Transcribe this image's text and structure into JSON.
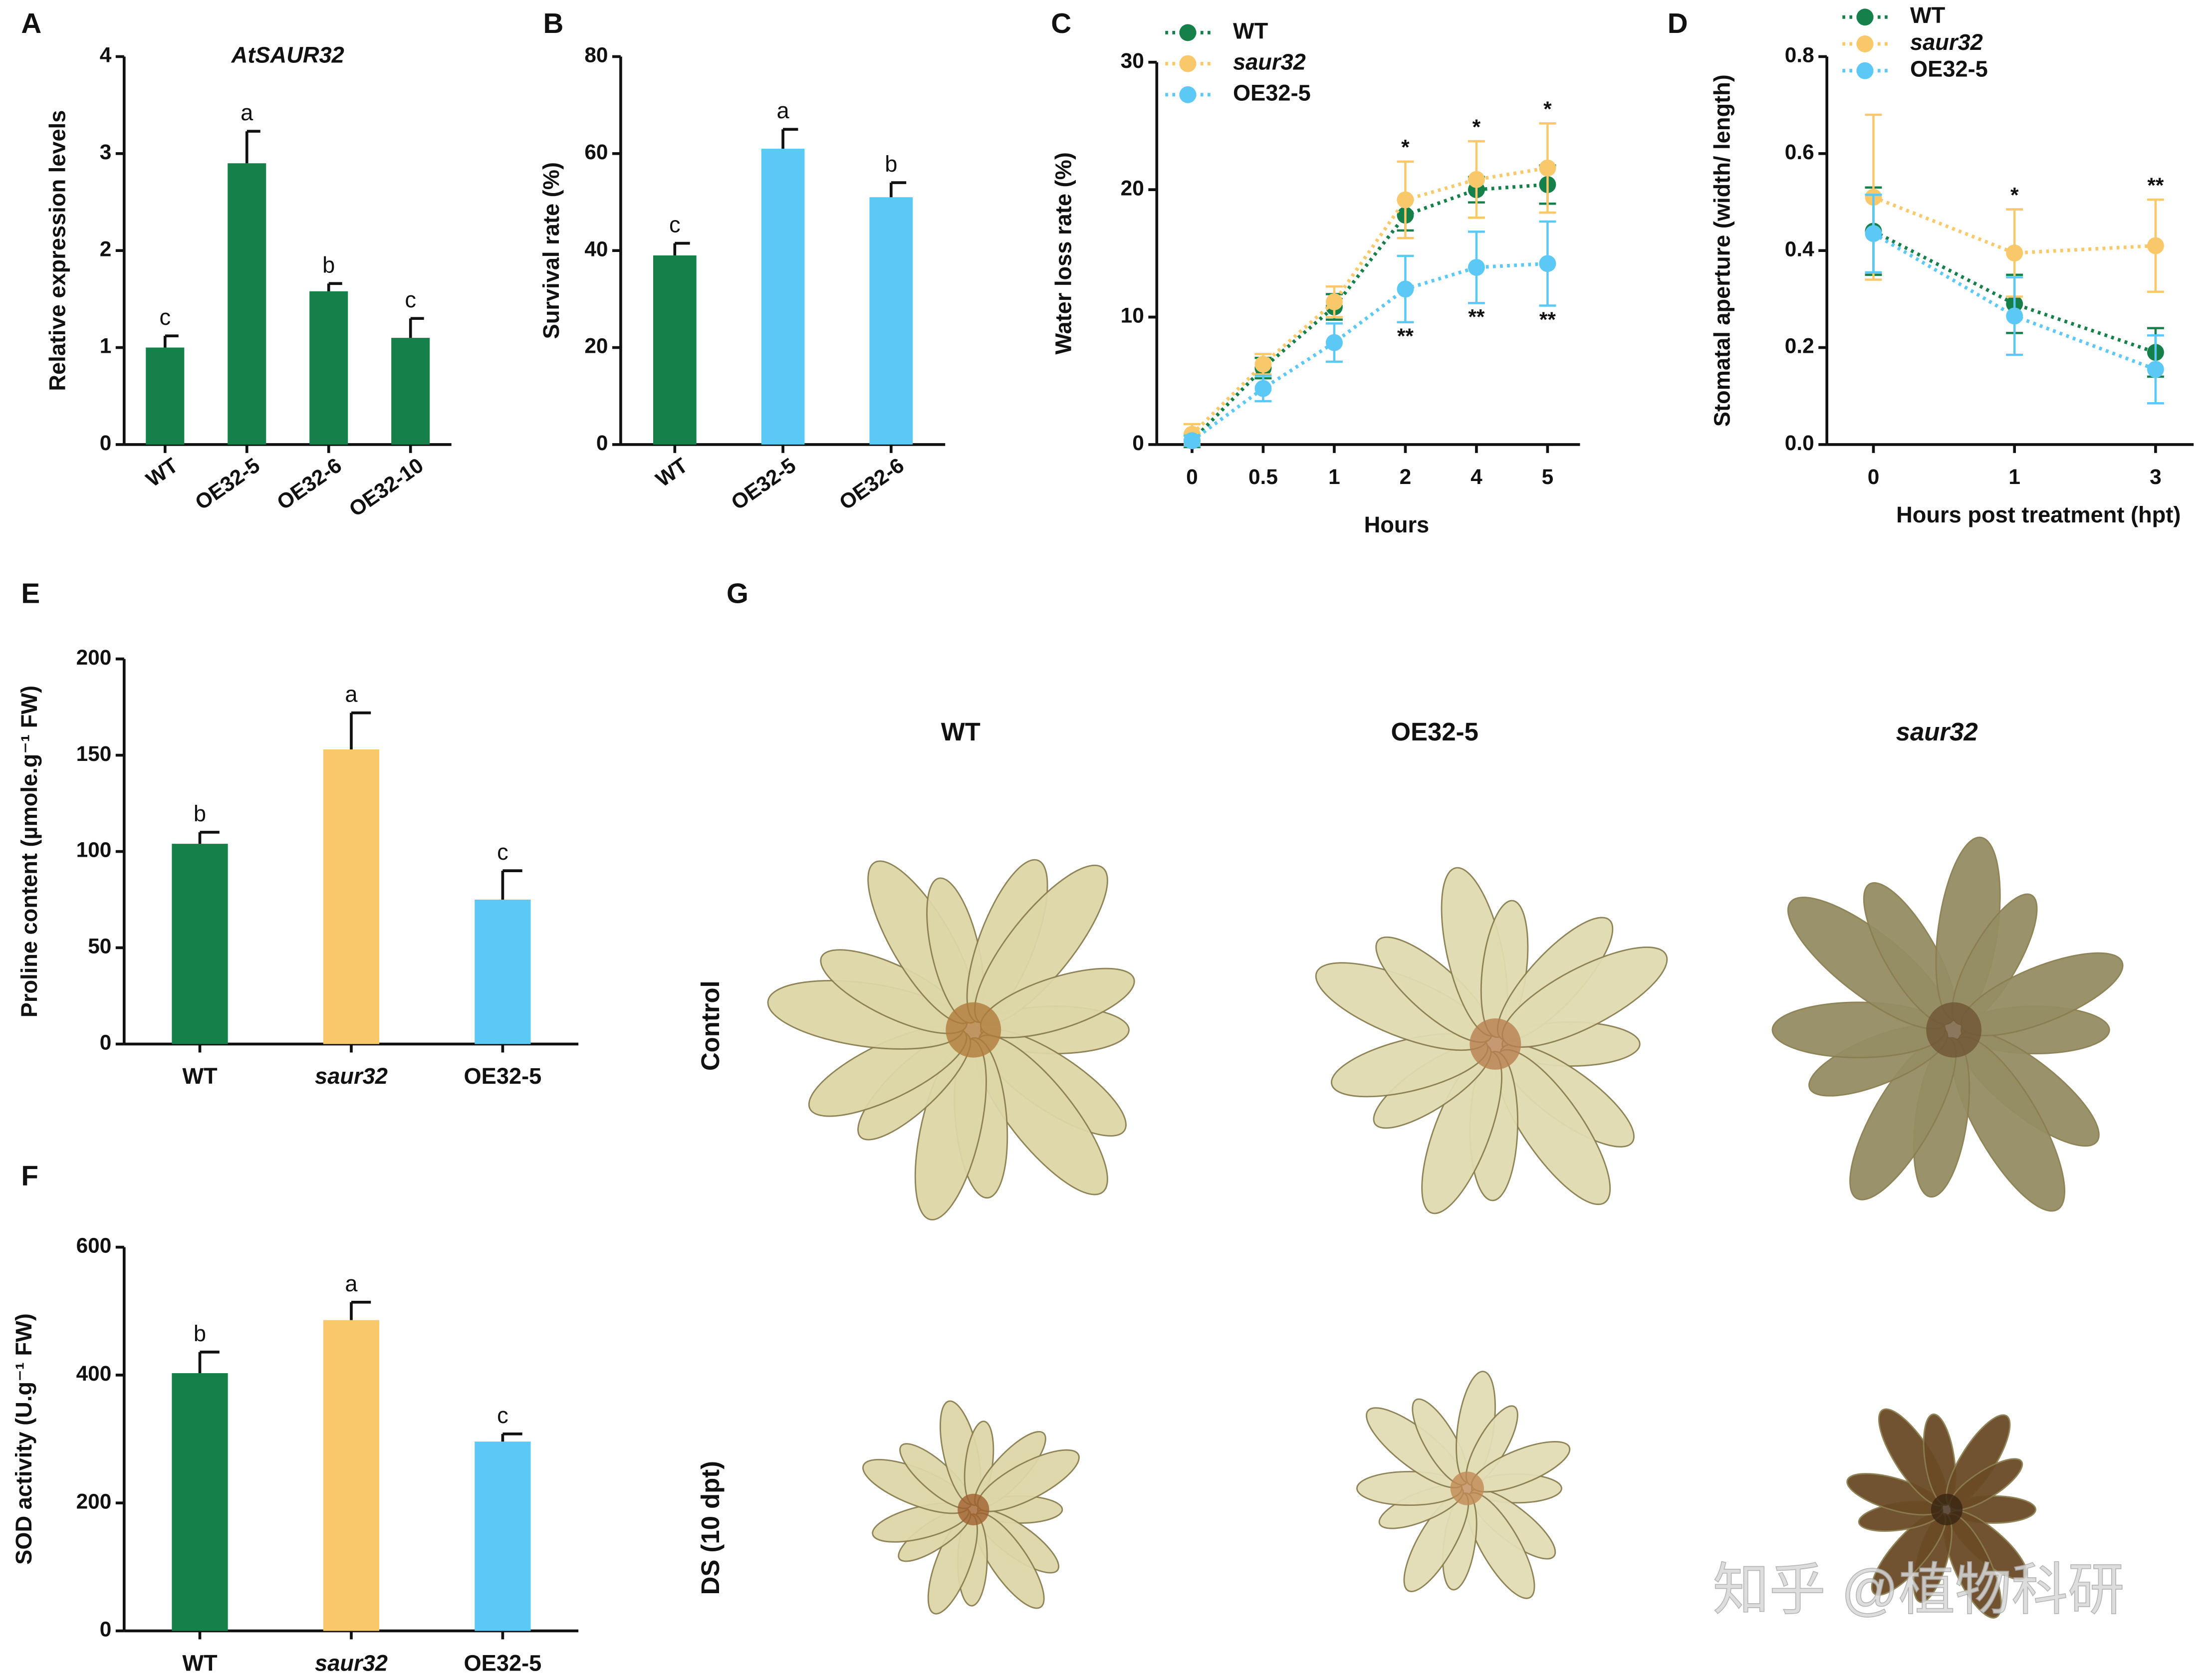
{
  "chart_data": [
    {
      "type": "bar",
      "panel": "A",
      "title": "AtSAUR32",
      "y_label": "Relative expression levels",
      "categories": [
        "WT",
        "OE32-5",
        "OE32-6",
        "OE32-10"
      ],
      "category_styles": [
        "normal",
        "normal",
        "normal",
        "normal"
      ],
      "values": [
        1.0,
        2.9,
        1.58,
        1.1
      ],
      "errors": [
        0.12,
        0.33,
        0.08,
        0.2
      ],
      "letters": [
        "c",
        "a",
        "b",
        "c"
      ],
      "colors": [
        "#16804a",
        "#16804a",
        "#16804a",
        "#16804a"
      ],
      "ylim": [
        0,
        4
      ],
      "yticks": [
        0,
        1,
        2,
        3,
        4
      ]
    },
    {
      "type": "bar",
      "panel": "B",
      "y_label": "Survival rate (%)",
      "categories": [
        "WT",
        "OE32-5",
        "OE32-6"
      ],
      "category_styles": [
        "normal",
        "normal",
        "normal"
      ],
      "values": [
        39,
        61,
        51
      ],
      "errors": [
        2.5,
        4,
        3
      ],
      "letters": [
        "c",
        "a",
        "b"
      ],
      "colors": [
        "#16804a",
        "#5bc8f5",
        "#5bc8f5"
      ],
      "ylim": [
        0,
        80
      ],
      "yticks": [
        0,
        20,
        40,
        60,
        80
      ]
    },
    {
      "type": "line",
      "panel": "C",
      "x_label": "Hours",
      "y_label": "Water loss rate (%)",
      "categories": [
        "0",
        "0.5",
        "1",
        "2",
        "4",
        "5"
      ],
      "series": [
        {
          "name": "WT",
          "name_style": "normal",
          "color": "#16804a",
          "values": [
            0.3,
            6.0,
            10.8,
            18,
            20,
            20.4
          ],
          "errors": [
            0.5,
            0.8,
            1,
            1.2,
            1,
            1.5
          ]
        },
        {
          "name": "saur32",
          "name_style": "italic",
          "color": "#f9c86a",
          "values": [
            0.8,
            6.3,
            11.2,
            19.2,
            20.8,
            21.7
          ],
          "errors": [
            0.8,
            0.8,
            1.2,
            3,
            3,
            3.5
          ]
        },
        {
          "name": "OE32-5",
          "name_style": "normal",
          "color": "#5bc8f5",
          "values": [
            0.3,
            4.4,
            8,
            12.2,
            13.9,
            14.2
          ],
          "errors": [
            0.4,
            1,
            1.5,
            2.6,
            2.8,
            3.3
          ]
        }
      ],
      "significance_top": [
        null,
        null,
        null,
        "*",
        "*",
        "*"
      ],
      "significance_bottom": [
        null,
        null,
        null,
        "**",
        "**",
        "**"
      ],
      "ylim": [
        0,
        30
      ],
      "yticks": [
        0,
        10,
        20,
        30
      ],
      "legend": "top-left"
    },
    {
      "type": "line",
      "panel": "D",
      "x_label": "Hours post treatment (hpt)",
      "y_label": "Stomatal aperture (width/ length)",
      "categories": [
        "0",
        "1",
        "3"
      ],
      "series": [
        {
          "name": "WT",
          "name_style": "normal",
          "color": "#16804a",
          "values": [
            0.44,
            0.29,
            0.19
          ],
          "errors": [
            0.09,
            0.06,
            0.05
          ]
        },
        {
          "name": "saur32",
          "name_style": "italic",
          "color": "#f9c86a",
          "values": [
            0.51,
            0.395,
            0.41
          ],
          "errors": [
            0.17,
            0.09,
            0.095
          ]
        },
        {
          "name": "OE32-5",
          "name_style": "normal",
          "color": "#5bc8f5",
          "values": [
            0.435,
            0.265,
            0.155
          ],
          "errors": [
            0.08,
            0.08,
            0.07
          ]
        }
      ],
      "significance_top": [
        null,
        "*",
        "**"
      ],
      "ylim": [
        0,
        0.8
      ],
      "yticks": [
        {
          "value": 0,
          "label": "0.0"
        },
        0.2,
        0.4,
        0.6,
        0.8
      ],
      "legend": "top-left"
    },
    {
      "type": "bar",
      "panel": "E",
      "y_label": "Proline content (µmole.g⁻¹ FW)",
      "categories": [
        "WT",
        "saur32",
        "OE32-5"
      ],
      "category_styles": [
        "normal",
        "italic",
        "normal"
      ],
      "values": [
        104,
        153,
        75
      ],
      "errors": [
        6,
        19,
        15
      ],
      "letters": [
        "b",
        "a",
        "c"
      ],
      "colors": [
        "#16804a",
        "#f9c86a",
        "#5bc8f5"
      ],
      "ylim": [
        0,
        200
      ],
      "yticks": [
        0,
        50,
        100,
        150,
        200
      ]
    },
    {
      "type": "bar",
      "panel": "F",
      "y_label": "SOD activity (U.g⁻¹ FW)",
      "categories": [
        "WT",
        "saur32",
        "OE32-5"
      ],
      "category_styles": [
        "normal",
        "italic",
        "normal"
      ],
      "values": [
        403,
        486,
        296
      ],
      "errors": [
        33,
        28,
        12
      ],
      "letters": [
        "b",
        "a",
        "c"
      ],
      "colors": [
        "#16804a",
        "#f9c86a",
        "#5bc8f5"
      ],
      "ylim": [
        0,
        600
      ],
      "yticks": [
        0,
        200,
        400,
        600
      ]
    }
  ],
  "photo_panel": {
    "panel": "G",
    "columns": [
      "WT",
      "OE32-5",
      "saur32"
    ],
    "rows": [
      "Control",
      "DS (10 dpt)"
    ]
  },
  "watermark": "知乎 @植物科研"
}
